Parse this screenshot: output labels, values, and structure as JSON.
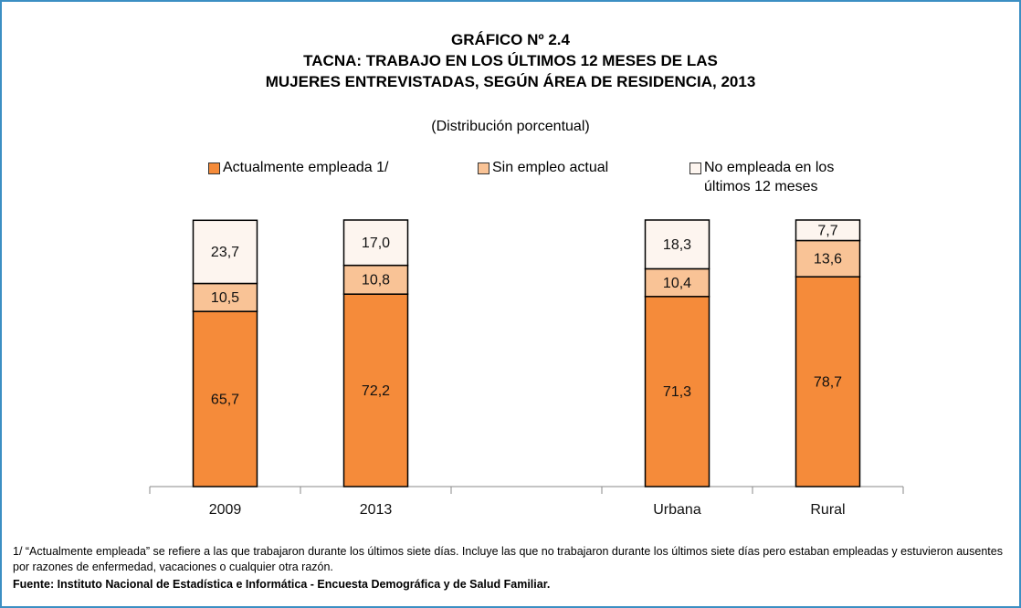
{
  "chart_data": {
    "type": "stacked_bar",
    "title": [
      "GRÁFICO Nº 2.4",
      "TACNA: TRABAJO EN LOS ÚLTIMOS 12 MESES DE LAS",
      "MUJERES ENTREVISTADAS, SEGÚN ÁREA DE RESIDENCIA, 2013"
    ],
    "subtitle": "(Distribución porcentual)",
    "categories": [
      "2009",
      "2013",
      null,
      "Urbana",
      "Rural"
    ],
    "ylim": [
      0,
      100
    ],
    "series": [
      {
        "name": "Actualmente empleada 1/",
        "color": "#f58b3a",
        "values": [
          65.7,
          72.2,
          null,
          71.3,
          78.7
        ],
        "value_labels": [
          "65,7",
          "72,2",
          null,
          "71,3",
          "78,7"
        ]
      },
      {
        "name": "Sin empleo actual",
        "color": "#f9c396",
        "values": [
          10.5,
          10.8,
          null,
          10.4,
          13.6
        ],
        "value_labels": [
          "10,5",
          "10,8",
          null,
          "10,4",
          "13,6"
        ]
      },
      {
        "name": "No empleada en los últimos 12 meses",
        "color": "#fdf5ef",
        "values": [
          23.7,
          17.0,
          null,
          18.3,
          7.7
        ],
        "value_labels": [
          "23,7",
          "17,0",
          null,
          "18,3",
          "7,7"
        ]
      }
    ],
    "notes": [
      "1/ “Actualmente empleada” se refiere a las que trabajaron durante los últimos siete días. Incluye las que no trabajaron durante los últimos siete días pero estaban empleadas y estuvieron ausentes por razones de enfermedad, vacaciones o cualquier otra razón."
    ],
    "source": "Fuente: Instituto Nacional de Estadística e Informática - Encuesta Demográfica y de Salud Familiar."
  }
}
